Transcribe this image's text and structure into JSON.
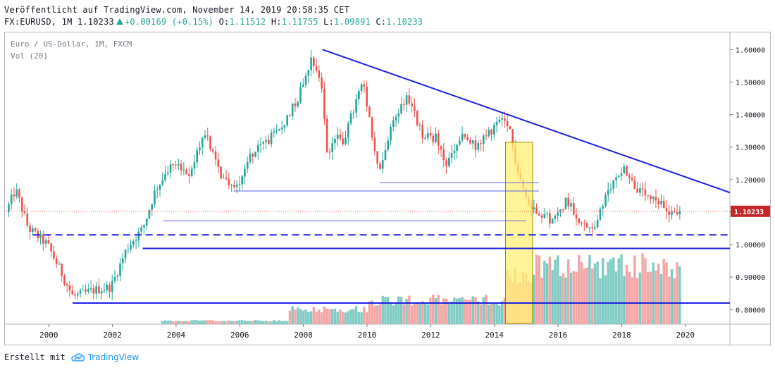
{
  "header": {
    "published": "Veröffentlicht auf TradingView.com, November 14, 2019 20:58:35 CET",
    "symbol": "FX:EURUSD, 1M 1.10233",
    "change": "+0.00169 (+0.15%)",
    "o_label": "O:",
    "o_value": "1.11512",
    "h_label": "H:",
    "h_value": "1.11755",
    "l_label": "L:",
    "l_value": "1.09891",
    "c_label": "C:",
    "c_value": "1.10233"
  },
  "legend": {
    "title": "Euro / US-Dollar, 1M, FXCM",
    "volume": "Vol (20)"
  },
  "footer": {
    "created_with": "Erstellt mit",
    "brand": "TradingView"
  },
  "colors": {
    "up": "#26a69a",
    "down": "#ef5350",
    "vol_up": "#80cbc4",
    "vol_down": "#f4a6a6",
    "trend": "#1e22e0",
    "highlight": "#fff176",
    "price_label": "#c62828"
  },
  "chart_data": {
    "type": "candlestick",
    "title": "Euro / US-Dollar, 1M, FXCM",
    "x_ticks": [
      "2000",
      "2002",
      "2004",
      "2006",
      "2008",
      "2010",
      "2012",
      "2014",
      "2016",
      "2018",
      "2020"
    ],
    "y_ticks": [
      "1.60000",
      "1.50000",
      "1.40000",
      "1.30000",
      "1.20000",
      "1.10000",
      "1.00000",
      "0.90000",
      "0.80000"
    ],
    "ylim": [
      0.755,
      1.655
    ],
    "xlim": [
      1998.6,
      2021.4
    ],
    "last_price": 1.10233,
    "last_price_label": "1.10233",
    "price_anchors": [
      [
        1998.7,
        1.1
      ],
      [
        1999.0,
        1.17
      ],
      [
        1999.4,
        1.05
      ],
      [
        2000.0,
        1.0
      ],
      [
        2000.8,
        0.84
      ],
      [
        2001.5,
        0.86
      ],
      [
        2002.0,
        0.87
      ],
      [
        2002.5,
        0.99
      ],
      [
        2003.0,
        1.05
      ],
      [
        2003.4,
        1.17
      ],
      [
        2004.0,
        1.26
      ],
      [
        2004.4,
        1.2
      ],
      [
        2004.95,
        1.35
      ],
      [
        2005.4,
        1.22
      ],
      [
        2005.9,
        1.17
      ],
      [
        2006.4,
        1.28
      ],
      [
        2006.9,
        1.32
      ],
      [
        2007.3,
        1.35
      ],
      [
        2007.9,
        1.46
      ],
      [
        2008.3,
        1.58
      ],
      [
        2008.6,
        1.5
      ],
      [
        2008.8,
        1.27
      ],
      [
        2009.0,
        1.33
      ],
      [
        2009.3,
        1.32
      ],
      [
        2009.9,
        1.5
      ],
      [
        2010.4,
        1.22
      ],
      [
        2010.9,
        1.39
      ],
      [
        2011.3,
        1.46
      ],
      [
        2011.8,
        1.33
      ],
      [
        2012.2,
        1.33
      ],
      [
        2012.5,
        1.24
      ],
      [
        2013.0,
        1.33
      ],
      [
        2013.5,
        1.3
      ],
      [
        2014.2,
        1.38
      ],
      [
        2014.5,
        1.36
      ],
      [
        2014.7,
        1.26
      ],
      [
        2015.1,
        1.12
      ],
      [
        2015.5,
        1.1
      ],
      [
        2015.9,
        1.07
      ],
      [
        2016.3,
        1.14
      ],
      [
        2016.9,
        1.05
      ],
      [
        2017.2,
        1.06
      ],
      [
        2017.7,
        1.18
      ],
      [
        2018.1,
        1.24
      ],
      [
        2018.5,
        1.17
      ],
      [
        2018.9,
        1.14
      ],
      [
        2019.3,
        1.12
      ],
      [
        2019.6,
        1.1
      ],
      [
        2019.85,
        1.1023
      ]
    ],
    "drawings": {
      "trendline": {
        "from": [
          2008.6,
          1.6
        ],
        "to": [
          2021.4,
          1.16
        ]
      },
      "solid_levels": [
        {
          "y": 0.82,
          "x_from": 2000.75,
          "x_to": 2021.4
        },
        {
          "y": 0.988,
          "x_from": 2002.95,
          "x_to": 2021.4
        }
      ],
      "dashed_level": {
        "y": 1.03,
        "x_from": 1999.5,
        "x_to": 2021.4
      },
      "thin_levels": [
        {
          "y": 1.073,
          "x_from": 2003.6,
          "x_to": 2015.0
        },
        {
          "y": 1.165,
          "x_from": 2005.8,
          "x_to": 2015.4
        },
        {
          "y": 1.19,
          "x_from": 2010.4,
          "x_to": 2015.4
        }
      ],
      "highlight_box": {
        "x_from": 2014.35,
        "x_to": 2015.2,
        "y_from": 0.757,
        "y_to": 1.315
      }
    },
    "volume": {
      "note": "relative monthly tick volume; rises from near zero around 2004 to peaks around 2015-2019",
      "phases": [
        {
          "from": 2003.5,
          "to": 2007.5,
          "level": 0.05
        },
        {
          "from": 2007.5,
          "to": 2010.0,
          "level": 0.22
        },
        {
          "from": 2010.0,
          "to": 2014.3,
          "level": 0.35
        },
        {
          "from": 2014.3,
          "to": 2015.2,
          "level": 0.7
        },
        {
          "from": 2015.2,
          "to": 2019.9,
          "level": 0.85
        }
      ]
    }
  }
}
